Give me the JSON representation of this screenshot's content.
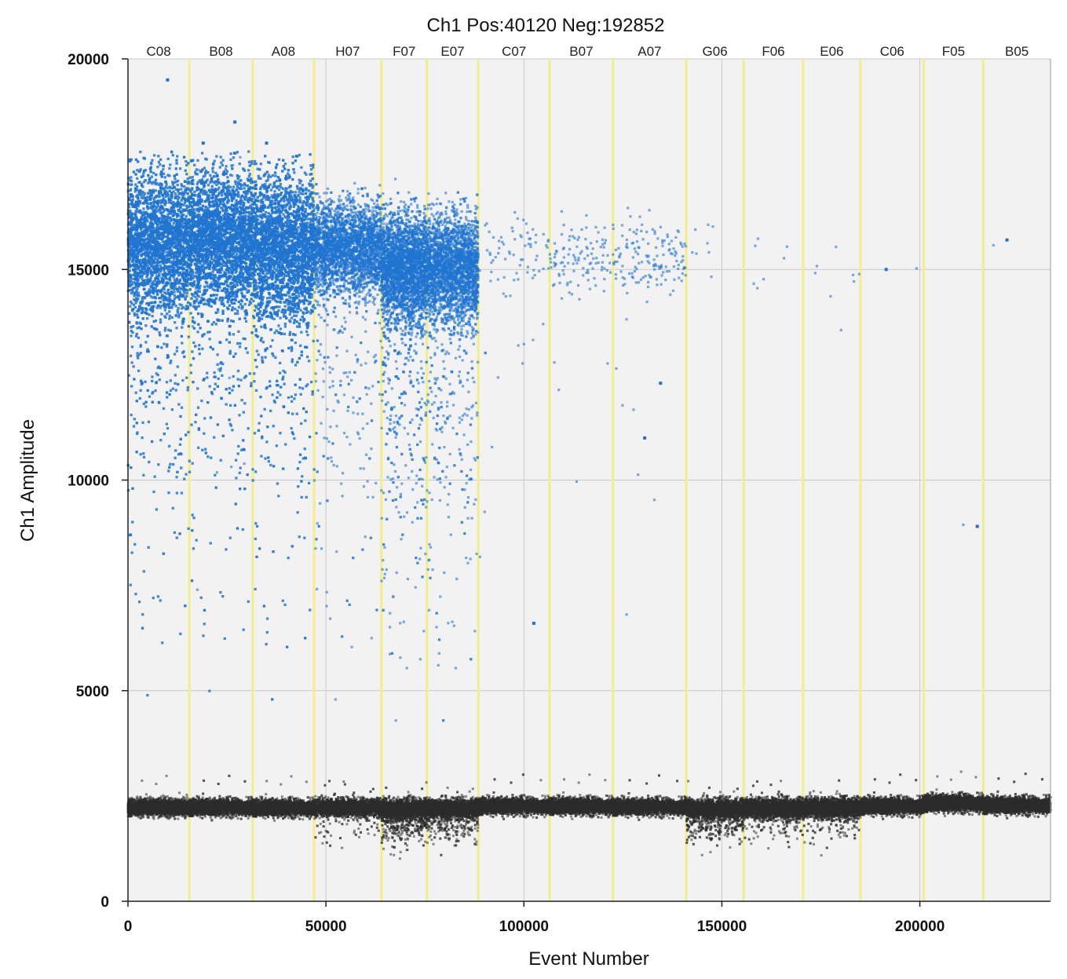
{
  "chart_data": {
    "type": "scatter",
    "title": "Ch1 Pos:40120 Neg:192852",
    "xlabel": "Event Number",
    "ylabel": "Ch1 Amplitude",
    "xlim": [
      0,
      233000
    ],
    "ylim": [
      0,
      20000
    ],
    "xticks": [
      0,
      50000,
      100000,
      150000,
      200000
    ],
    "xtick_labels": [
      "0",
      "50000",
      "100000",
      "150000",
      "200000"
    ],
    "yticks": [
      0,
      5000,
      10000,
      15000,
      20000
    ],
    "ytick_labels": [
      "0",
      "5000",
      "10000",
      "15000",
      "20000"
    ],
    "grid": true,
    "colors": {
      "positive": "#1f74d0",
      "negative": "#3a3a3a",
      "well_divider": "#f2ee8a",
      "background": "#f2f2f2"
    },
    "wells": [
      {
        "label": "C08",
        "start": 0,
        "end": 15500,
        "pos_count": 5500,
        "neg_count": 3000,
        "pos_mean": 15600,
        "pos_sd": 850,
        "pos_tail": 0.08,
        "neg_mean": 2230,
        "neg_sd": 90,
        "neg_dip": 0.0
      },
      {
        "label": "B08",
        "start": 15500,
        "end": 31500,
        "pos_count": 6000,
        "neg_count": 3000,
        "pos_mean": 15700,
        "pos_sd": 800,
        "pos_tail": 0.07,
        "neg_mean": 2230,
        "neg_sd": 90,
        "neg_dip": 0.0
      },
      {
        "label": "A08",
        "start": 31500,
        "end": 47000,
        "pos_count": 5800,
        "neg_count": 3000,
        "pos_mean": 15500,
        "pos_sd": 850,
        "pos_tail": 0.07,
        "neg_mean": 2220,
        "neg_sd": 90,
        "neg_dip": 0.0
      },
      {
        "label": "H07",
        "start": 47000,
        "end": 64000,
        "pos_count": 3200,
        "neg_count": 3200,
        "pos_mean": 15500,
        "pos_sd": 550,
        "pos_tail": 0.05,
        "neg_mean": 2220,
        "neg_sd": 100,
        "neg_dip": 0.04
      },
      {
        "label": "F07",
        "start": 64000,
        "end": 75500,
        "pos_count": 3500,
        "neg_count": 2600,
        "pos_mean": 15000,
        "pos_sd": 650,
        "pos_tail": 0.1,
        "neg_mean": 2200,
        "neg_sd": 110,
        "neg_dip": 0.22
      },
      {
        "label": "E07",
        "start": 75500,
        "end": 88500,
        "pos_count": 3000,
        "neg_count": 2600,
        "pos_mean": 15000,
        "pos_sd": 650,
        "pos_tail": 0.08,
        "neg_mean": 2200,
        "neg_sd": 110,
        "neg_dip": 0.16
      },
      {
        "label": "C07",
        "start": 88500,
        "end": 106500,
        "pos_count": 80,
        "neg_count": 3000,
        "pos_mean": 15300,
        "pos_sd": 500,
        "pos_tail": 0.06,
        "neg_mean": 2260,
        "neg_sd": 90,
        "neg_dip": 0.0
      },
      {
        "label": "B07",
        "start": 106500,
        "end": 122500,
        "pos_count": 110,
        "neg_count": 3000,
        "pos_mean": 15300,
        "pos_sd": 450,
        "pos_tail": 0.03,
        "neg_mean": 2260,
        "neg_sd": 90,
        "neg_dip": 0.0
      },
      {
        "label": "A07",
        "start": 122500,
        "end": 141000,
        "pos_count": 150,
        "neg_count": 3000,
        "pos_mean": 15300,
        "pos_sd": 450,
        "pos_tail": 0.04,
        "neg_mean": 2240,
        "neg_sd": 90,
        "neg_dip": 0.0
      },
      {
        "label": "G06",
        "start": 141000,
        "end": 155500,
        "pos_count": 8,
        "neg_count": 3000,
        "pos_mean": 15400,
        "pos_sd": 400,
        "pos_tail": 0.0,
        "neg_mean": 2200,
        "neg_sd": 110,
        "neg_dip": 0.18
      },
      {
        "label": "F06",
        "start": 155500,
        "end": 170500,
        "pos_count": 7,
        "neg_count": 3000,
        "pos_mean": 15000,
        "pos_sd": 500,
        "pos_tail": 0.0,
        "neg_mean": 2210,
        "neg_sd": 110,
        "neg_dip": 0.07
      },
      {
        "label": "E06",
        "start": 170500,
        "end": 185000,
        "pos_count": 8,
        "neg_count": 3000,
        "pos_mean": 15000,
        "pos_sd": 600,
        "pos_tail": 0.0,
        "neg_mean": 2220,
        "neg_sd": 110,
        "neg_dip": 0.06
      },
      {
        "label": "C06",
        "start": 185000,
        "end": 201000,
        "pos_count": 1,
        "neg_count": 3000,
        "pos_mean": 15000,
        "pos_sd": 100,
        "pos_tail": 0.0,
        "neg_mean": 2260,
        "neg_sd": 90,
        "neg_dip": 0.0
      },
      {
        "label": "F05",
        "start": 201000,
        "end": 216000,
        "pos_count": 1,
        "neg_count": 3200,
        "pos_mean": 8900,
        "pos_sd": 100,
        "pos_tail": 0.0,
        "neg_mean": 2330,
        "neg_sd": 90,
        "neg_dip": 0.0
      },
      {
        "label": "B05",
        "start": 216000,
        "end": 233000,
        "pos_count": 1,
        "neg_count": 3200,
        "pos_mean": 15700,
        "pos_sd": 100,
        "pos_tail": 0.0,
        "neg_mean": 2280,
        "neg_sd": 90,
        "neg_dip": 0.0
      }
    ],
    "notable_points": [
      {
        "x": 10000,
        "y": 19500
      },
      {
        "x": 27000,
        "y": 18500
      },
      {
        "x": 19000,
        "y": 18000
      },
      {
        "x": 35000,
        "y": 18000
      },
      {
        "x": 102500,
        "y": 6600
      },
      {
        "x": 130500,
        "y": 11000
      },
      {
        "x": 134500,
        "y": 12300
      },
      {
        "x": 214500,
        "y": 8900
      },
      {
        "x": 191500,
        "y": 15000
      },
      {
        "x": 222000,
        "y": 15700
      }
    ]
  }
}
